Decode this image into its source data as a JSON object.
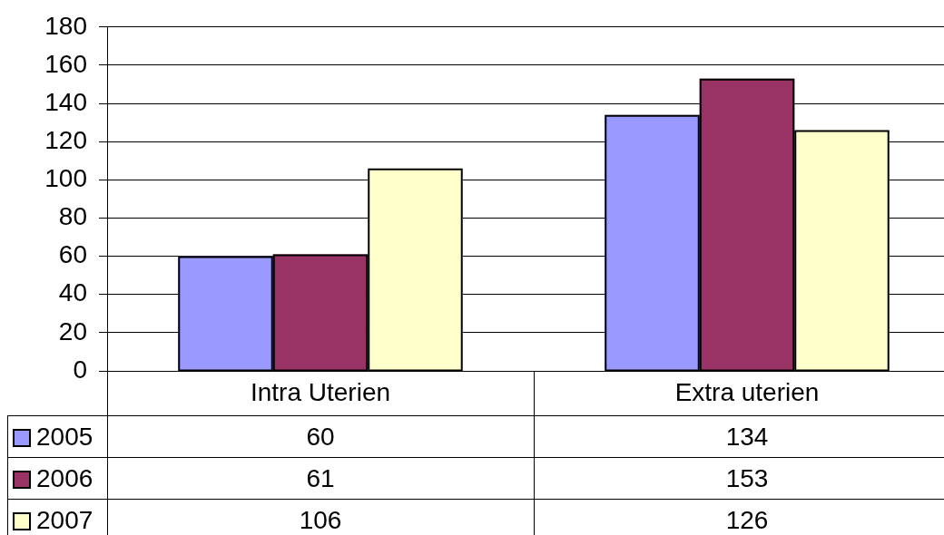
{
  "chart_data": {
    "type": "bar",
    "categories": [
      "Intra Uterien",
      "Extra uterien"
    ],
    "series": [
      {
        "name": "2005",
        "color": "#9999ff",
        "values": [
          60,
          134
        ]
      },
      {
        "name": "2006",
        "color": "#993366",
        "values": [
          61,
          153
        ]
      },
      {
        "name": "2007",
        "color": "#ffffcc",
        "values": [
          106,
          126
        ]
      }
    ],
    "ylim": [
      0,
      180
    ],
    "yticks": [
      0,
      20,
      40,
      60,
      80,
      100,
      120,
      140,
      160,
      180
    ],
    "grid": "y",
    "legend": "bottom left",
    "data_labels": true
  }
}
